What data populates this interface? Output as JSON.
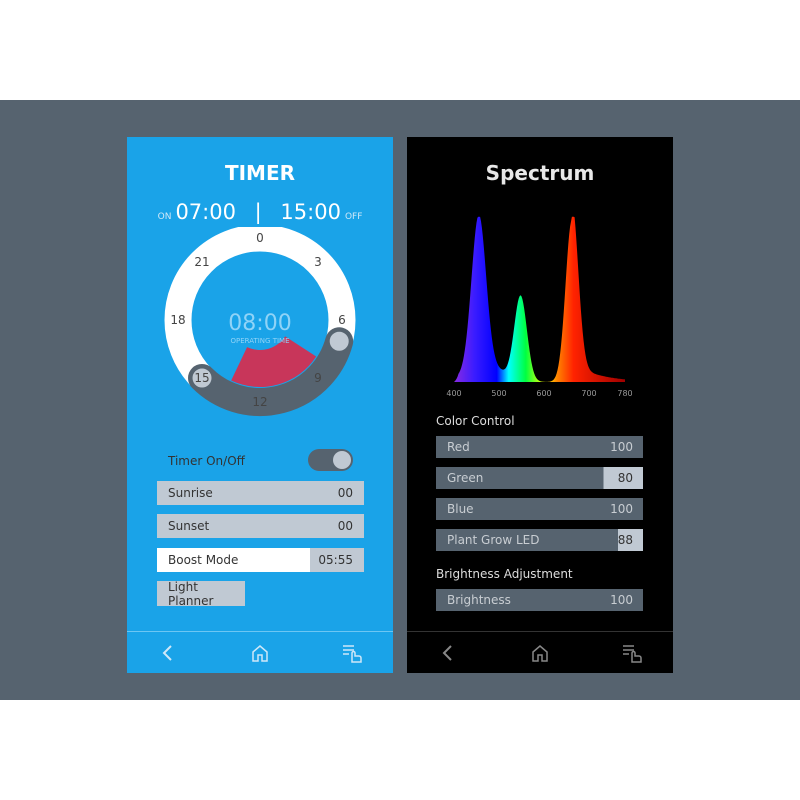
{
  "timer": {
    "title": "TIMER",
    "on_label": "ON",
    "on_time": "07:00",
    "separator": "|",
    "off_time": "15:00",
    "off_label": "OFF",
    "dial": {
      "hour_labels": [
        "0",
        "3",
        "6",
        "9",
        "12",
        "15",
        "18",
        "21"
      ],
      "operating_time": "08:00",
      "operating_label": "OPERATING TIME",
      "start_hour": 7,
      "end_hour": 15
    },
    "toggle": {
      "label": "Timer On/Off",
      "on": true
    },
    "rows": [
      {
        "label": "Sunrise",
        "value": "00"
      },
      {
        "label": "Sunset",
        "value": "00"
      },
      {
        "label": "Boost Mode",
        "value": "05:55"
      }
    ],
    "light_planner": "Light Planner",
    "colors": {
      "background": "#1aa3e8",
      "arc": "#56636f",
      "wedge": "#c8365a"
    }
  },
  "spectrum": {
    "title": "Spectrum",
    "chart_data": {
      "type": "area",
      "x_ticks": [
        "400",
        "500",
        "600",
        "700",
        "780"
      ],
      "xlim": [
        400,
        780
      ],
      "peaks": [
        {
          "wavelength": 455,
          "relative_height": 0.94
        },
        {
          "wavelength": 548,
          "relative_height": 0.52
        },
        {
          "wavelength": 662,
          "relative_height": 1.0
        }
      ]
    },
    "color_control_label": "Color Control",
    "channels": [
      {
        "label": "Red",
        "value": "100",
        "level": 100
      },
      {
        "label": "Green",
        "value": "80",
        "level": 80
      },
      {
        "label": "Blue",
        "value": "100",
        "level": 100
      },
      {
        "label": "Plant Grow LED",
        "value": "88",
        "level": 88
      }
    ],
    "brightness_label": "Brightness Adjustment",
    "brightness": {
      "label": "Brightness",
      "value": "100",
      "level": 100
    }
  },
  "nav": {
    "icons": [
      "back-icon",
      "home-icon",
      "menu-touch-icon"
    ]
  }
}
